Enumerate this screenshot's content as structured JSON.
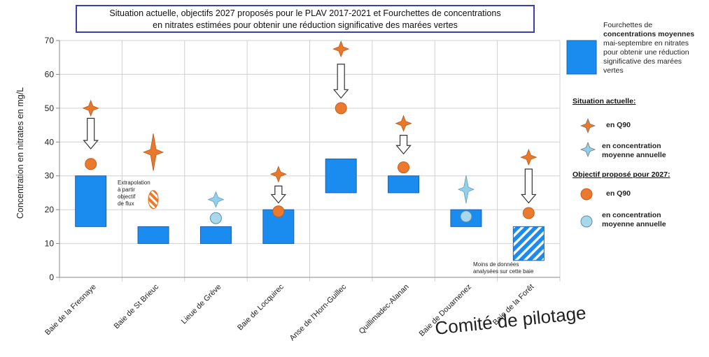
{
  "chart_data": {
    "type": "bar",
    "title_lines": [
      "Situation actuelle, objectifs 2027 proposés pour le PLAV 2017-2021 et Fourchettes de concentrations",
      "en nitrates estimées pour obtenir une réduction significative des marées vertes"
    ],
    "ylabel": "Concentration en nitrates en mg/L",
    "ylim": [
      0,
      70
    ],
    "yticks": [
      "0",
      "10",
      "20",
      "30",
      "40",
      "50",
      "60",
      "70"
    ],
    "categories": [
      "Baie de la Fresnaye",
      "Baie de St Brieuc",
      "Lieue de Grève",
      "Baie de Locquirec",
      "Anse de l'Horn-Guillec",
      "Quillimadec-Alanan",
      "Baie de Douarnenez",
      "Baie de la Forêt"
    ],
    "ranges": [
      {
        "low": 15,
        "high": 30,
        "hatched": false
      },
      {
        "low": 10,
        "high": 15,
        "hatched": false
      },
      {
        "low": 10,
        "high": 15,
        "hatched": false
      },
      {
        "low": 10,
        "high": 20,
        "hatched": false
      },
      {
        "low": 25,
        "high": 35,
        "hatched": false
      },
      {
        "low": 25,
        "high": 30,
        "hatched": false
      },
      {
        "low": 15,
        "high": 20,
        "hatched": false
      },
      {
        "low": 5,
        "high": 15,
        "hatched": true
      }
    ],
    "current_q90": [
      50,
      37,
      null,
      30.5,
      67.5,
      45.5,
      null,
      35.5
    ],
    "current_mean": [
      null,
      null,
      23,
      null,
      null,
      null,
      26,
      null
    ],
    "target_q90": [
      33.5,
      23,
      null,
      19.5,
      50,
      32.5,
      null,
      19
    ],
    "target_mean": [
      null,
      null,
      17.5,
      null,
      null,
      null,
      18,
      null
    ],
    "arrows": [
      {
        "from": 47,
        "to": 38
      },
      null,
      null,
      {
        "from": 27,
        "to": 22
      },
      {
        "from": 63,
        "to": 53
      },
      {
        "from": 42,
        "to": 36.5
      },
      null,
      {
        "from": 32,
        "to": 22
      }
    ],
    "legend": {
      "range_text": [
        "Fourchettes de",
        "concentrations moyennes",
        "mai-septembre en nitrates",
        "pour obtenir une réduction",
        "significative des marées",
        "vertes"
      ],
      "current_heading": "Situation actuelle:",
      "current_q90": "en Q90",
      "current_mean": [
        "en concentration",
        "moyenne annuelle"
      ],
      "target_heading": "Objectif proposé pour 2027:",
      "target_q90": "en Q90",
      "target_mean": [
        "en concentration",
        "moyenne annuelle"
      ]
    },
    "annotations": {
      "extrapolation": [
        "Extrapolation",
        "à partir",
        "objectif",
        "de flux"
      ],
      "less_data": [
        "Moins de données",
        "analysées sur cette baie"
      ]
    },
    "colors": {
      "bar": "#1a8cf0",
      "bar_edge": "#1f5faa",
      "star": "#e9782a",
      "star_mean": "#8fd0ea",
      "circle": "#ec7a2e",
      "circle_mean": "#a8d8ea",
      "arrow": "#ffffff"
    }
  },
  "footer_text": "Comité de pilotage"
}
